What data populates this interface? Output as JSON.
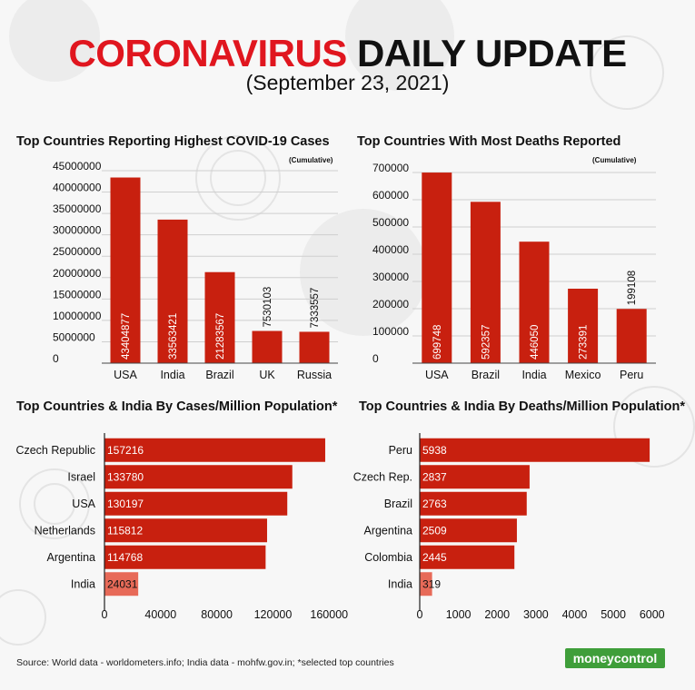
{
  "header": {
    "title_red": "CORONAVIRUS",
    "title_black": "DAILY UPDATE",
    "date": "(September 23, 2021)"
  },
  "footer": {
    "source": "Source: World data - worldometers.info; India data - mohfw.gov.in; *selected top countries",
    "logo_money": "money",
    "logo_control": "control"
  },
  "colors": {
    "bar": "#c8200f",
    "india_highlight": "#e76a58",
    "grid": "#cfcfcf"
  },
  "chart_data": [
    {
      "type": "bar",
      "title": "Top Countries Reporting Highest COVID-19 Cases",
      "subtitle": "(Cumulative)",
      "categories": [
        "USA",
        "India",
        "Brazil",
        "UK",
        "Russia"
      ],
      "values": [
        43404877,
        33563421,
        21283567,
        7530103,
        7333557
      ],
      "yticks": [
        "45000000",
        "40000000",
        "35000000",
        "30000000",
        "25000000",
        "20000000",
        "15000000",
        "10000000",
        "5000000",
        "0"
      ],
      "ylim": [
        0,
        45000000
      ],
      "grid": true
    },
    {
      "type": "bar",
      "title": "Top Countries With Most Deaths Reported",
      "subtitle": "(Cumulative)",
      "categories": [
        "USA",
        "Brazil",
        "India",
        "Mexico",
        "Peru"
      ],
      "values": [
        699748,
        592357,
        446050,
        273391,
        199108
      ],
      "yticks": [
        "700000",
        "600000",
        "500000",
        "400000",
        "300000",
        "200000",
        "100000",
        "0"
      ],
      "ylim": [
        0,
        700000
      ],
      "grid": true
    },
    {
      "type": "bar",
      "orientation": "horizontal",
      "title": "Top Countries & India By Cases/Million Population*",
      "categories": [
        "Czech Republic",
        "Israel",
        "USA",
        "Netherlands",
        "Argentina",
        "India"
      ],
      "values": [
        157216,
        133780,
        130197,
        115812,
        114768,
        24031
      ],
      "xticks": [
        "0",
        "40000",
        "80000",
        "120000",
        "160000"
      ],
      "xlim": [
        0,
        165000
      ],
      "highlight": "India"
    },
    {
      "type": "bar",
      "orientation": "horizontal",
      "title": "Top Countries & India By Deaths/Million Population*",
      "categories": [
        "Peru",
        "Czech Rep.",
        "Brazil",
        "Argentina",
        "Colombia",
        "India"
      ],
      "values": [
        5938,
        2837,
        2763,
        2509,
        2445,
        319
      ],
      "xticks": [
        "0",
        "1000",
        "2000",
        "3000",
        "4000",
        "5000",
        "6000"
      ],
      "xlim": [
        0,
        6100
      ],
      "highlight": "India"
    }
  ]
}
